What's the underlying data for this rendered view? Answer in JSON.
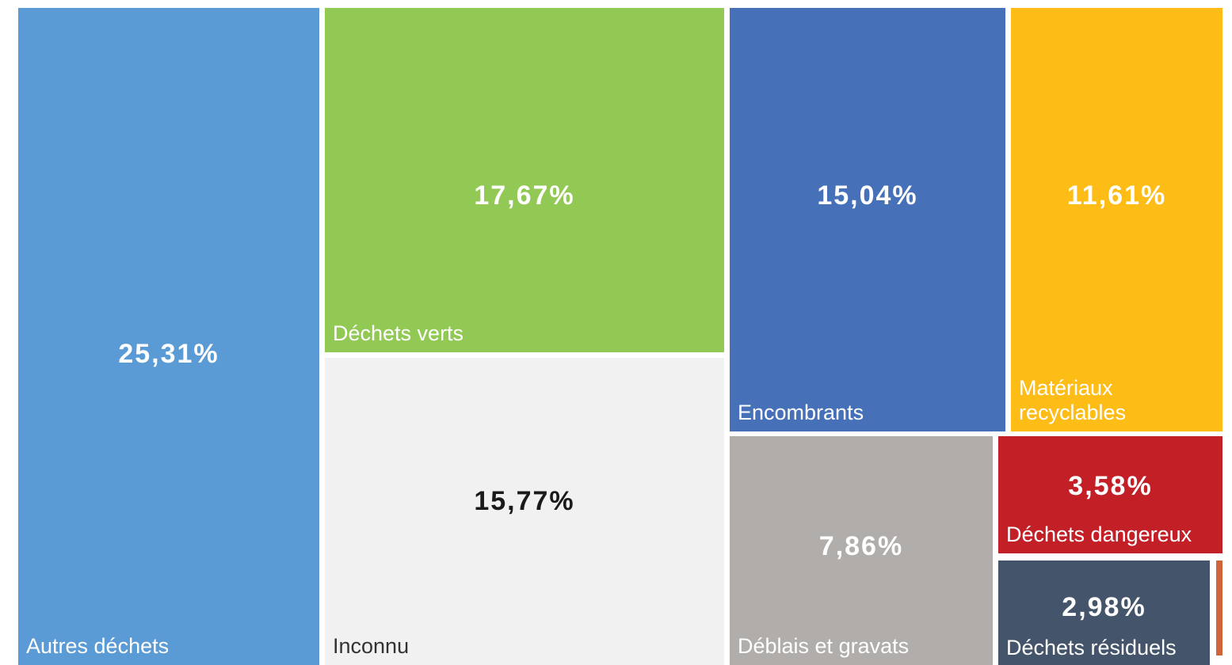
{
  "chart_data": {
    "type": "treemap",
    "unit": "%",
    "items": [
      {
        "label": "Autres déchets",
        "value": 25.31,
        "display": "25,31%",
        "color": "#5b9bd5",
        "text_color": "#ffffff"
      },
      {
        "label": "Déchets verts",
        "value": 17.67,
        "display": "17,67%",
        "color": "#92c854",
        "text_color": "#ffffff"
      },
      {
        "label": "Inconnu",
        "value": 15.77,
        "display": "15,77%",
        "color": "#f1f1f1",
        "text_color": "#1a1a1a",
        "label_color": "#333333"
      },
      {
        "label": "Encombrants",
        "value": 15.04,
        "display": "15,04%",
        "color": "#4671b8",
        "text_color": "#ffffff"
      },
      {
        "label": "Matériaux\nrecyclables",
        "value": 11.61,
        "display": "11,61%",
        "color": "#fdbc16",
        "text_color": "#ffffff"
      },
      {
        "label": "Déblais et gravats",
        "value": 7.86,
        "display": "7,86%",
        "color": "#b0adab",
        "text_color": "#ffffff"
      },
      {
        "label": "Déchets dangereux",
        "value": 3.58,
        "display": "3,58%",
        "color": "#c21f27",
        "text_color": "#ffffff"
      },
      {
        "label": "Déchets résiduels",
        "value": 2.98,
        "display": "2,98%",
        "color": "#44546a",
        "text_color": "#ffffff"
      },
      {
        "label": "",
        "value": null,
        "display": "",
        "color": "#d0643a",
        "text_color": "#ffffff"
      }
    ]
  }
}
